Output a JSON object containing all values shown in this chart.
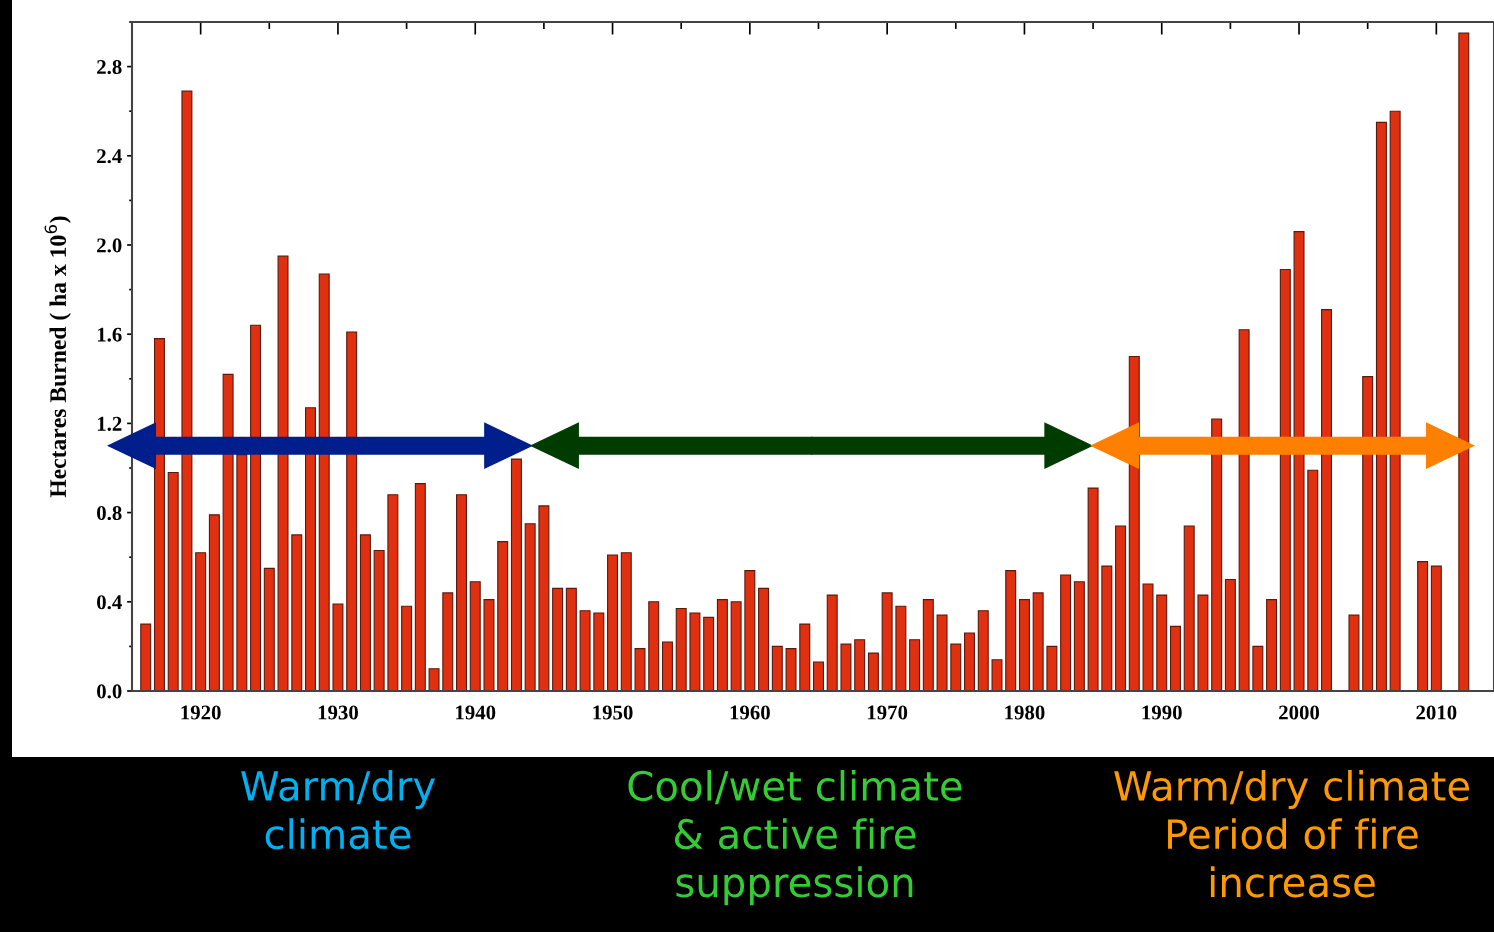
{
  "chart_data": {
    "type": "bar",
    "ylabel": "Hectares Burned ( ha x 10$^{6}$)",
    "x": [
      1916,
      1917,
      1918,
      1919,
      1920,
      1921,
      1922,
      1923,
      1924,
      1925,
      1926,
      1927,
      1928,
      1929,
      1930,
      1931,
      1932,
      1933,
      1934,
      1935,
      1936,
      1937,
      1938,
      1939,
      1940,
      1941,
      1942,
      1943,
      1944,
      1945,
      1946,
      1947,
      1948,
      1949,
      1950,
      1951,
      1952,
      1953,
      1954,
      1955,
      1956,
      1957,
      1958,
      1959,
      1960,
      1961,
      1962,
      1963,
      1964,
      1965,
      1966,
      1967,
      1968,
      1969,
      1970,
      1971,
      1972,
      1973,
      1974,
      1975,
      1976,
      1977,
      1978,
      1979,
      1980,
      1981,
      1982,
      1983,
      1984,
      1985,
      1986,
      1987,
      1988,
      1989,
      1990,
      1991,
      1992,
      1993,
      1994,
      1995,
      1996,
      1997,
      1998,
      1999,
      2000,
      2001,
      2002,
      2003,
      2004,
      2005,
      2006,
      2007,
      2008,
      2009,
      2010,
      2011,
      2012
    ],
    "values": [
      0.3,
      1.58,
      0.98,
      2.69,
      0.62,
      0.79,
      1.42,
      1.06,
      1.64,
      0.55,
      1.95,
      0.7,
      1.27,
      1.87,
      0.39,
      1.61,
      0.7,
      0.63,
      0.88,
      0.38,
      0.93,
      0.1,
      0.44,
      0.88,
      0.49,
      0.41,
      0.67,
      1.04,
      0.75,
      0.83,
      0.46,
      0.46,
      0.36,
      0.35,
      0.61,
      0.62,
      0.19,
      0.4,
      0.22,
      0.37,
      0.35,
      0.33,
      0.41,
      0.4,
      0.54,
      0.46,
      0.2,
      0.19,
      0.3,
      0.13,
      0.43,
      0.21,
      0.23,
      0.17,
      0.44,
      0.38,
      0.23,
      0.41,
      0.34,
      0.21,
      0.26,
      0.36,
      0.14,
      0.54,
      0.41,
      0.44,
      0.2,
      0.52,
      0.49,
      0.91,
      0.56,
      0.74,
      1.5,
      0.48,
      0.43,
      0.29,
      0.74,
      0.43,
      1.22,
      0.5,
      1.62,
      0.2,
      0.41,
      1.89,
      2.06,
      0.99,
      1.71,
      null,
      0.34,
      1.41,
      2.55,
      2.6,
      null,
      0.58,
      0.56,
      null,
      2.95
    ],
    "color": "#e0300f",
    "xlim": [
      1915,
      2014.2
    ],
    "xticks": [
      1920,
      1930,
      1940,
      1950,
      1960,
      1970,
      1980,
      1990,
      2000,
      2010
    ],
    "ylim": [
      0,
      3.0
    ],
    "yticks": [
      {
        "value": 0,
        "label": "0.0"
      },
      0.4,
      0.8,
      1.2,
      1.6,
      {
        "value": 2,
        "label": "2.0"
      },
      2.4,
      2.8
    ],
    "annotations": [
      "Warm/dry\nclimate",
      "Cool/wet climate\n& active fire\nsuppression",
      "Warm/dry climate\nPeriod of fire\nincrease"
    ]
  }
}
